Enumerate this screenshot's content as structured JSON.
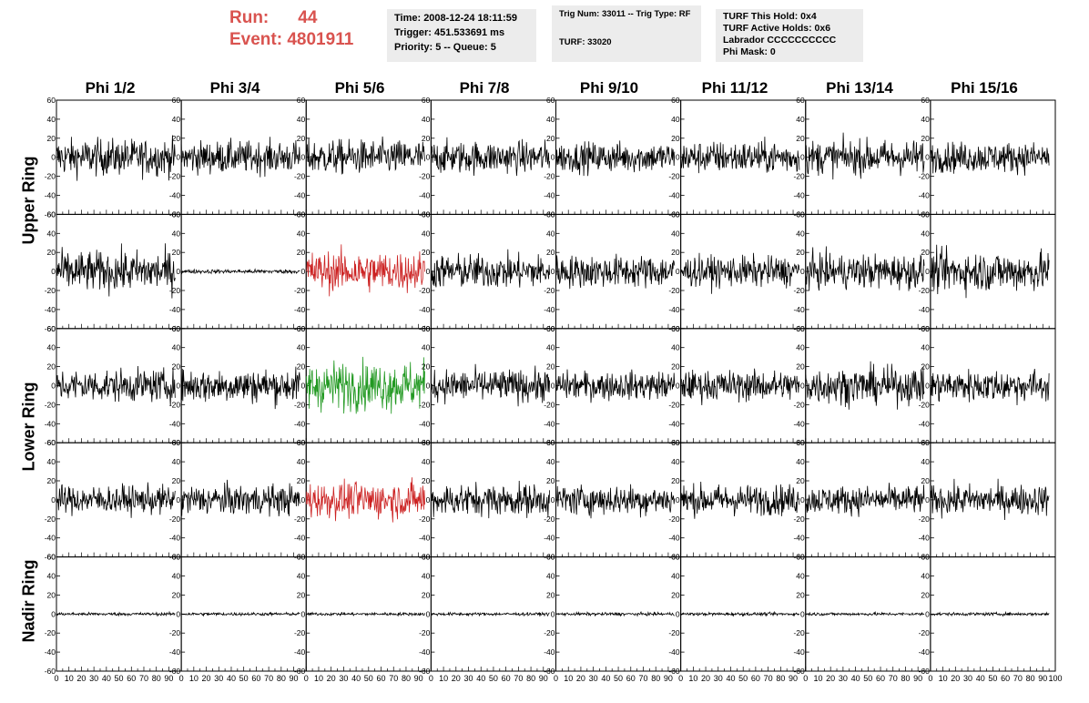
{
  "header": {
    "run_label": "Run:",
    "run_value": "44",
    "event_label": "Event:",
    "event_value": "4801911"
  },
  "info_box_1": {
    "time": "Time: 2008-12-24 18:11:59",
    "trigger": "Trigger: 451.533691 ms",
    "priority": "Priority: 5 -- Queue: 5"
  },
  "info_box_2": {
    "trig": "Trig Num: 33011 -- Trig Type: RF",
    "turf": "TURF: 33020"
  },
  "info_box_3": {
    "this_hold": "TURF This Hold: 0x4",
    "active_holds": "TURF Active Holds: 0x6",
    "labrador": "Labrador CCCCCCCCCC",
    "phi_mask": "Phi Mask: 0"
  },
  "columns": [
    "Phi 1/2",
    "Phi 3/4",
    "Phi 5/6",
    "Phi 7/8",
    "Phi 9/10",
    "Phi 11/12",
    "Phi 13/14",
    "Phi 15/16"
  ],
  "ring_labels": {
    "upper": "Upper Ring",
    "lower": "Lower Ring",
    "nadir": "Nadir Ring"
  },
  "chart_data": {
    "type": "line",
    "description_of_grid": "5 rows x 8 columns of waveform panels",
    "ylim": [
      -60,
      60
    ],
    "xlim": [
      0,
      100
    ],
    "y_ticks": [
      -60,
      -40,
      -20,
      0,
      20,
      40,
      60
    ],
    "x_ticks": [
      0,
      10,
      20,
      30,
      40,
      50,
      60,
      70,
      80,
      90,
      100
    ],
    "colors": {
      "normal": "#000000",
      "highlight_red": "#cc2222",
      "highlight_green": "#229922"
    },
    "rows": [
      {
        "amplitudes": [
          18,
          16,
          17,
          16,
          15,
          16,
          17,
          15
        ],
        "colors": [
          "normal",
          "normal",
          "normal",
          "normal",
          "normal",
          "normal",
          "normal",
          "normal"
        ]
      },
      {
        "amplitudes": [
          20,
          2,
          20,
          17,
          16,
          15,
          17,
          20
        ],
        "colors": [
          "normal",
          "normal",
          "highlight_red",
          "normal",
          "normal",
          "normal",
          "normal",
          "normal"
        ]
      },
      {
        "amplitudes": [
          16,
          17,
          24,
          16,
          14,
          15,
          18,
          16
        ],
        "colors": [
          "normal",
          "normal",
          "highlight_green",
          "normal",
          "normal",
          "normal",
          "normal",
          "normal"
        ]
      },
      {
        "amplitudes": [
          14,
          15,
          18,
          16,
          15,
          15,
          14,
          15
        ],
        "colors": [
          "normal",
          "normal",
          "highlight_red",
          "normal",
          "normal",
          "normal",
          "normal",
          "normal"
        ]
      },
      {
        "amplitudes": [
          1.5,
          1.5,
          1.5,
          1.5,
          1.5,
          1.5,
          1.5,
          1.5
        ],
        "colors": [
          "normal",
          "normal",
          "normal",
          "normal",
          "normal",
          "normal",
          "normal",
          "normal"
        ]
      }
    ]
  }
}
